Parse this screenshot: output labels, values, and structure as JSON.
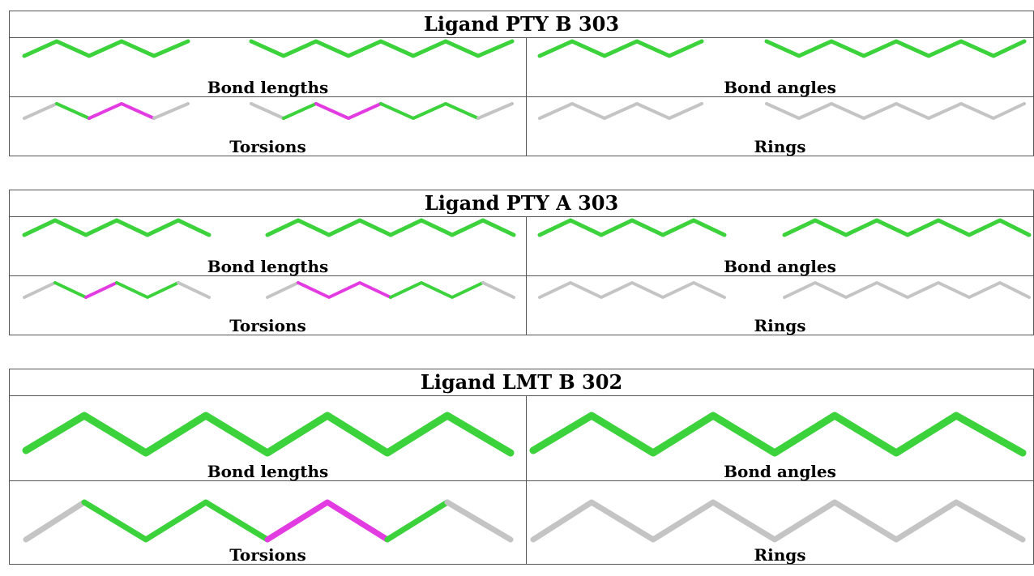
{
  "colors": {
    "green": "#3cd23c",
    "magenta": "#e23be2",
    "gray": "#c4c4c4"
  },
  "tables": [
    {
      "title": "Ligand PTY B 303",
      "panels": {
        "bond_lengths": "Bond lengths",
        "bond_angles": "Bond angles",
        "torsions": "Torsions",
        "rings": "Rings"
      }
    },
    {
      "title": "Ligand PTY A 303",
      "panels": {
        "bond_lengths": "Bond lengths",
        "bond_angles": "Bond angles",
        "torsions": "Torsions",
        "rings": "Rings"
      }
    },
    {
      "title": "Ligand LMT B 302",
      "panels": {
        "bond_lengths": "Bond lengths",
        "bond_angles": "Bond angles",
        "torsions": "Torsions",
        "rings": "Rings"
      }
    }
  ]
}
